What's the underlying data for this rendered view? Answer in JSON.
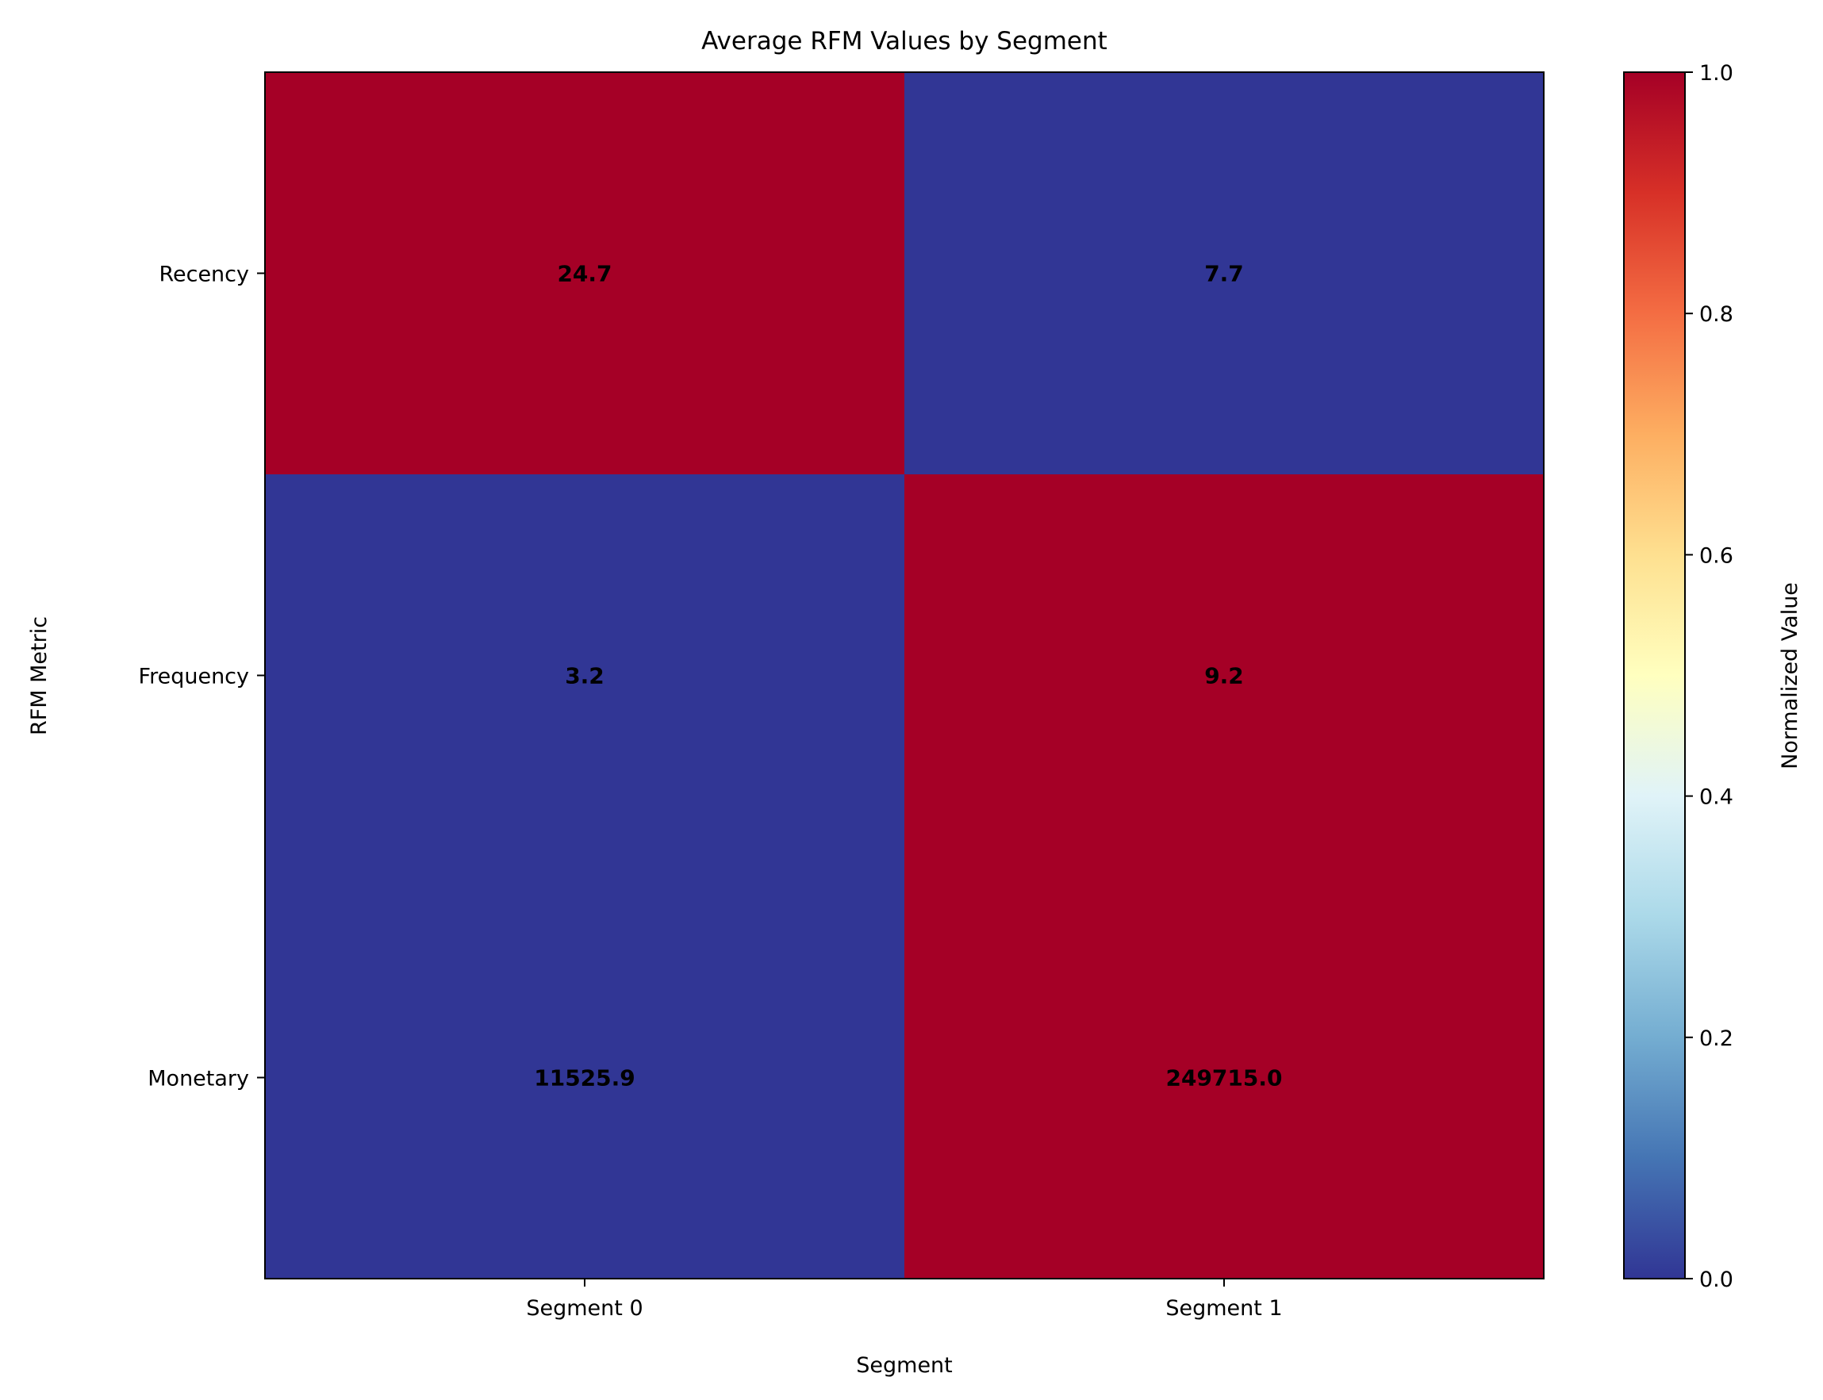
{
  "chart_data": {
    "type": "heatmap",
    "title": "Average RFM Values by Segment",
    "xlabel": "Segment",
    "ylabel": "RFM Metric",
    "x_categories": [
      "Segment 0",
      "Segment 1"
    ],
    "y_categories": [
      "Recency",
      "Frequency",
      "Monetary"
    ],
    "values": [
      [
        24.7,
        7.7
      ],
      [
        3.2,
        9.2
      ],
      [
        11525.9,
        249715.0
      ]
    ],
    "value_labels": [
      [
        "24.7",
        "7.7"
      ],
      [
        "3.2",
        "9.2"
      ],
      [
        "11525.9",
        "249715.0"
      ]
    ],
    "normalized": [
      [
        1.0,
        0.0
      ],
      [
        0.0,
        1.0
      ],
      [
        0.0,
        1.0
      ]
    ],
    "colormap": "RdYlBu_r",
    "colorbar": {
      "label": "Normalized Value",
      "range": [
        0.0,
        1.0
      ],
      "ticks": [
        "0.0",
        "0.2",
        "0.4",
        "0.6",
        "0.8",
        "1.0"
      ]
    },
    "colors": {
      "low": "#313695",
      "high": "#a50026"
    },
    "grid": false
  }
}
